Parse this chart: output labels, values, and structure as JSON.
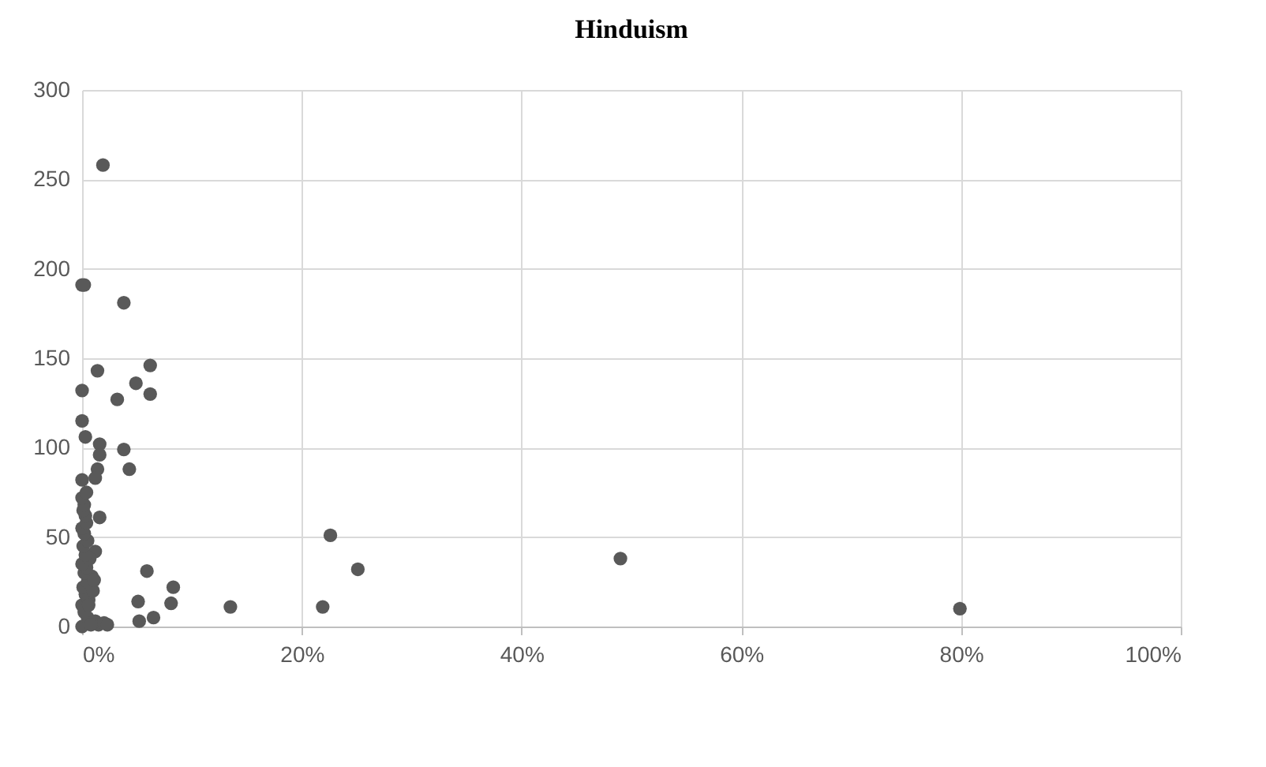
{
  "chart_data": {
    "type": "scatter",
    "title": "Hinduism",
    "x": [
      1.9,
      0,
      0.2,
      3.8,
      1.4,
      6.2,
      0,
      4.9,
      6.2,
      3.2,
      0,
      0.3,
      1.6,
      1.6,
      3.8,
      4.3,
      1.4,
      1.2,
      0,
      1.6,
      1.2,
      5.9,
      8.3,
      8.1,
      5.1,
      13.5,
      5.2,
      6.5,
      22.6,
      25.1,
      21.9,
      49,
      79.9,
      0,
      0.5,
      0.2,
      0,
      0.6,
      0.3,
      0.1,
      0.5,
      0.9,
      0.2,
      0.4,
      0,
      0.7,
      0.3,
      0.1,
      0.5,
      0.2,
      0,
      0.4,
      0.3,
      0.1,
      0.2,
      0,
      0.4,
      1,
      1.2,
      1.5,
      2,
      2.3,
      0.8,
      1.1,
      0.6
    ],
    "series": [
      {
        "color": "#595959",
        "values": [
          258,
          191,
          191,
          181,
          143,
          146,
          132,
          136,
          130,
          127,
          115,
          106,
          102,
          96,
          99,
          88,
          88,
          83,
          82,
          61,
          42,
          31,
          22,
          13,
          14,
          11,
          3,
          5,
          51,
          32,
          11,
          38,
          10,
          0,
          5,
          8,
          12,
          15,
          18,
          22,
          25,
          28,
          30,
          33,
          35,
          38,
          40,
          45,
          48,
          52,
          55,
          58,
          62,
          65,
          68,
          72,
          75,
          20,
          3,
          1,
          2,
          1,
          1,
          26,
          12
        ]
      }
    ],
    "xlim": [
      0,
      100
    ],
    "xticks": [
      {
        "value": 0,
        "label": "0%"
      },
      {
        "value": 20,
        "label": "20%"
      },
      {
        "value": 40,
        "label": "40%"
      },
      {
        "value": 60,
        "label": "60%"
      },
      {
        "value": 80,
        "label": "80%"
      },
      {
        "value": 100,
        "label": "100%"
      }
    ],
    "ylim": [
      0,
      300
    ],
    "yticks": [
      0,
      50,
      100,
      150,
      200,
      250,
      300
    ],
    "grid": true,
    "marker": "circle"
  }
}
